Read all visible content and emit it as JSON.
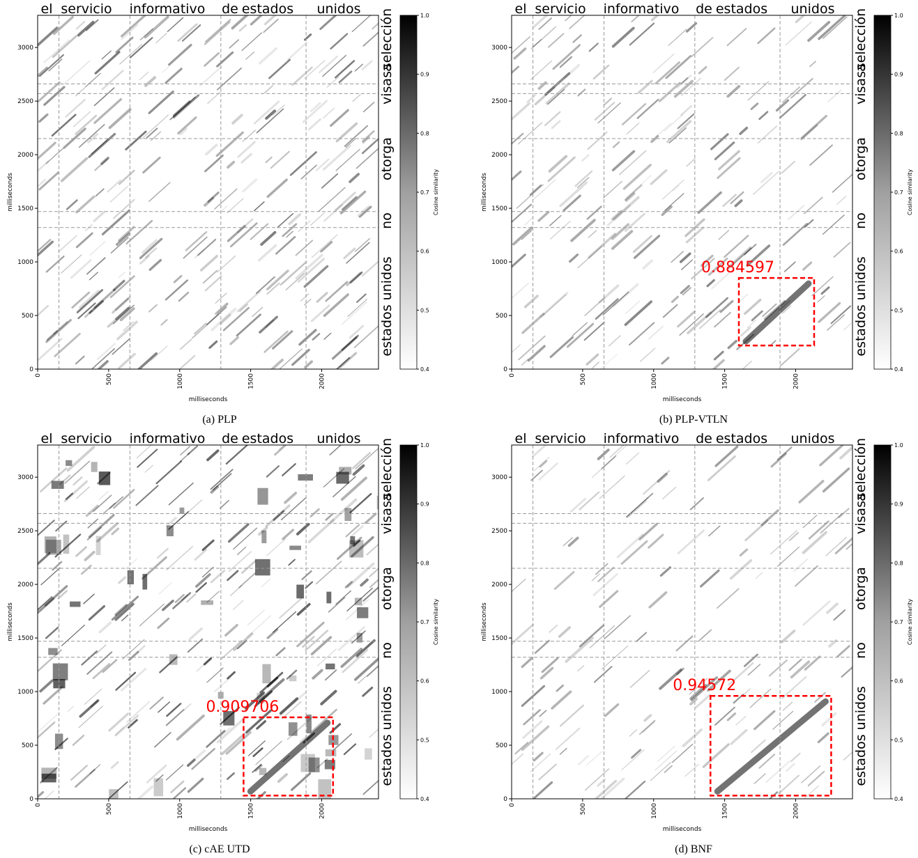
{
  "figure": {
    "x_words": [
      "el",
      "servicio",
      "informativo",
      "de",
      "estados",
      "unidos"
    ],
    "y_words": [
      "estados unidos",
      "no",
      "otorga",
      "visas",
      "a",
      "selección"
    ],
    "colorbar_label": "Cosine similarity",
    "colorbar_ticks": [
      "1.0",
      "0.9",
      "0.8",
      "0.7",
      "0.6",
      "0.5",
      "0.4"
    ]
  },
  "chart_data": [
    {
      "type": "heatmap",
      "caption": "(a) PLP",
      "xlabel": "milliseconds",
      "ylabel": "milliseconds",
      "xlim": [
        0,
        2400
      ],
      "ylim": [
        0,
        3300
      ],
      "x_ticks": [
        "0",
        "500",
        "1000",
        "1500",
        "2000"
      ],
      "y_ticks": [
        "0",
        "500",
        "1000",
        "1500",
        "2000",
        "2500",
        "3000"
      ],
      "colorbar_range": [
        0.4,
        1.0
      ],
      "x_word_boundaries_ms": [
        150,
        650,
        1290,
        1890
      ],
      "y_word_boundaries_ms": [
        1320,
        1470,
        2150,
        2570,
        2660
      ],
      "highlight": null
    },
    {
      "type": "heatmap",
      "caption": "(b) PLP-VTLN",
      "xlabel": "milliseconds",
      "ylabel": "milliseconds",
      "xlim": [
        0,
        2400
      ],
      "ylim": [
        0,
        3300
      ],
      "x_ticks": [
        "0",
        "500",
        "1000",
        "1500",
        "2000"
      ],
      "y_ticks": [
        "0",
        "500",
        "1000",
        "1500",
        "2000",
        "2500",
        "3000"
      ],
      "colorbar_range": [
        0.4,
        1.0
      ],
      "x_word_boundaries_ms": [
        150,
        650,
        1290,
        1890
      ],
      "y_word_boundaries_ms": [
        1320,
        1470,
        2150,
        2570,
        2660
      ],
      "highlight": {
        "score": "0.884597",
        "x_range_ms": [
          1600,
          2130
        ],
        "y_range_ms": [
          220,
          850
        ]
      }
    },
    {
      "type": "heatmap",
      "caption": "(c) cAE UTD",
      "xlabel": "milliseconds",
      "ylabel": "milliseconds",
      "xlim": [
        0,
        2400
      ],
      "ylim": [
        0,
        3300
      ],
      "x_ticks": [
        "0",
        "500",
        "1000",
        "1500",
        "2000"
      ],
      "y_ticks": [
        "0",
        "500",
        "1000",
        "1500",
        "2000",
        "2500",
        "3000"
      ],
      "colorbar_range": [
        0.4,
        1.0
      ],
      "x_word_boundaries_ms": [
        150,
        650,
        1290,
        1890
      ],
      "y_word_boundaries_ms": [
        1320,
        1470,
        2150,
        2570,
        2660
      ],
      "highlight": {
        "score": "0.909706",
        "x_range_ms": [
          1450,
          2080
        ],
        "y_range_ms": [
          30,
          760
        ]
      }
    },
    {
      "type": "heatmap",
      "caption": "(d) BNF",
      "xlabel": "milliseconds",
      "ylabel": "milliseconds",
      "xlim": [
        0,
        2400
      ],
      "ylim": [
        0,
        3300
      ],
      "x_ticks": [
        "0",
        "500",
        "1000",
        "1500",
        "2000"
      ],
      "y_ticks": [
        "0",
        "500",
        "1000",
        "1500",
        "2000",
        "2500",
        "3000"
      ],
      "colorbar_range": [
        0.4,
        1.0
      ],
      "x_word_boundaries_ms": [
        150,
        650,
        1290,
        1890
      ],
      "y_word_boundaries_ms": [
        1320,
        1470,
        2150,
        2570,
        2660
      ],
      "highlight": {
        "score": "0.94572",
        "x_range_ms": [
          1400,
          2250
        ],
        "y_range_ms": [
          30,
          960
        ]
      }
    }
  ]
}
